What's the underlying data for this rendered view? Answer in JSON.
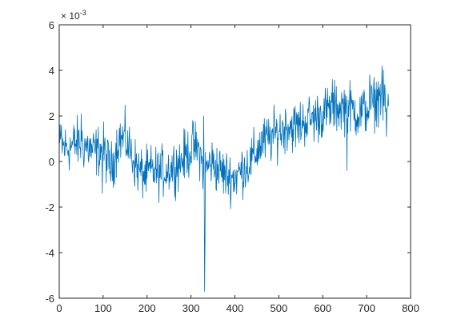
{
  "chart_data": {
    "type": "line",
    "title": "",
    "xlabel": "",
    "ylabel": "",
    "xlim": [
      0,
      800
    ],
    "ylim": [
      -6,
      6
    ],
    "x_ticks": [
      0,
      100,
      200,
      300,
      400,
      500,
      600,
      700,
      800
    ],
    "y_ticks": [
      -6,
      -4,
      -2,
      0,
      2,
      4,
      6
    ],
    "y_scale_multiplier": "×10^-3",
    "y_exponent": {
      "base_prefix": "× 10",
      "power": "-3"
    },
    "grid": false,
    "legend": "none",
    "series": [
      {
        "color": "#0072BD",
        "anchors": [
          [
            0,
            0.7
          ],
          [
            20,
            0.6
          ],
          [
            40,
            0.8
          ],
          [
            60,
            0.7
          ],
          [
            80,
            0.4
          ],
          [
            100,
            0.6
          ],
          [
            110,
            0.0
          ],
          [
            120,
            -0.3
          ],
          [
            135,
            1.0
          ],
          [
            150,
            1.0
          ],
          [
            165,
            0.3
          ],
          [
            180,
            -0.4
          ],
          [
            195,
            -0.6
          ],
          [
            210,
            -0.4
          ],
          [
            230,
            -0.5
          ],
          [
            250,
            -0.3
          ],
          [
            270,
            -0.1
          ],
          [
            290,
            0.3
          ],
          [
            305,
            0.7
          ],
          [
            320,
            0.4
          ],
          [
            330,
            -0.5
          ],
          [
            345,
            0.0
          ],
          [
            360,
            -0.3
          ],
          [
            380,
            -0.6
          ],
          [
            400,
            -0.7
          ],
          [
            420,
            -0.3
          ],
          [
            440,
            0.1
          ],
          [
            460,
            0.8
          ],
          [
            480,
            1.0
          ],
          [
            500,
            1.3
          ],
          [
            520,
            1.6
          ],
          [
            540,
            1.5
          ],
          [
            560,
            1.8
          ],
          [
            580,
            1.9
          ],
          [
            600,
            2.1
          ],
          [
            620,
            2.3
          ],
          [
            640,
            2.4
          ],
          [
            660,
            2.4
          ],
          [
            680,
            2.1
          ],
          [
            700,
            2.3
          ],
          [
            720,
            2.6
          ],
          [
            730,
            3.0
          ],
          [
            740,
            2.5
          ],
          [
            750,
            2.2
          ]
        ],
        "n_points": 750,
        "noise_amplitude": 0.55,
        "spikes": [
          [
            331,
            -5.7
          ],
          [
            332,
            -3.3
          ],
          [
            329,
            2.0
          ],
          [
            655,
            -0.4
          ],
          [
            735,
            4.2
          ],
          [
            622,
            3.6
          ],
          [
            707,
            3.8
          ],
          [
            742,
            3.2
          ],
          [
            5,
            1.6
          ],
          [
            50,
            2.1
          ],
          [
            745,
            1.1
          ],
          [
            98,
            -1.4
          ]
        ]
      }
    ]
  }
}
